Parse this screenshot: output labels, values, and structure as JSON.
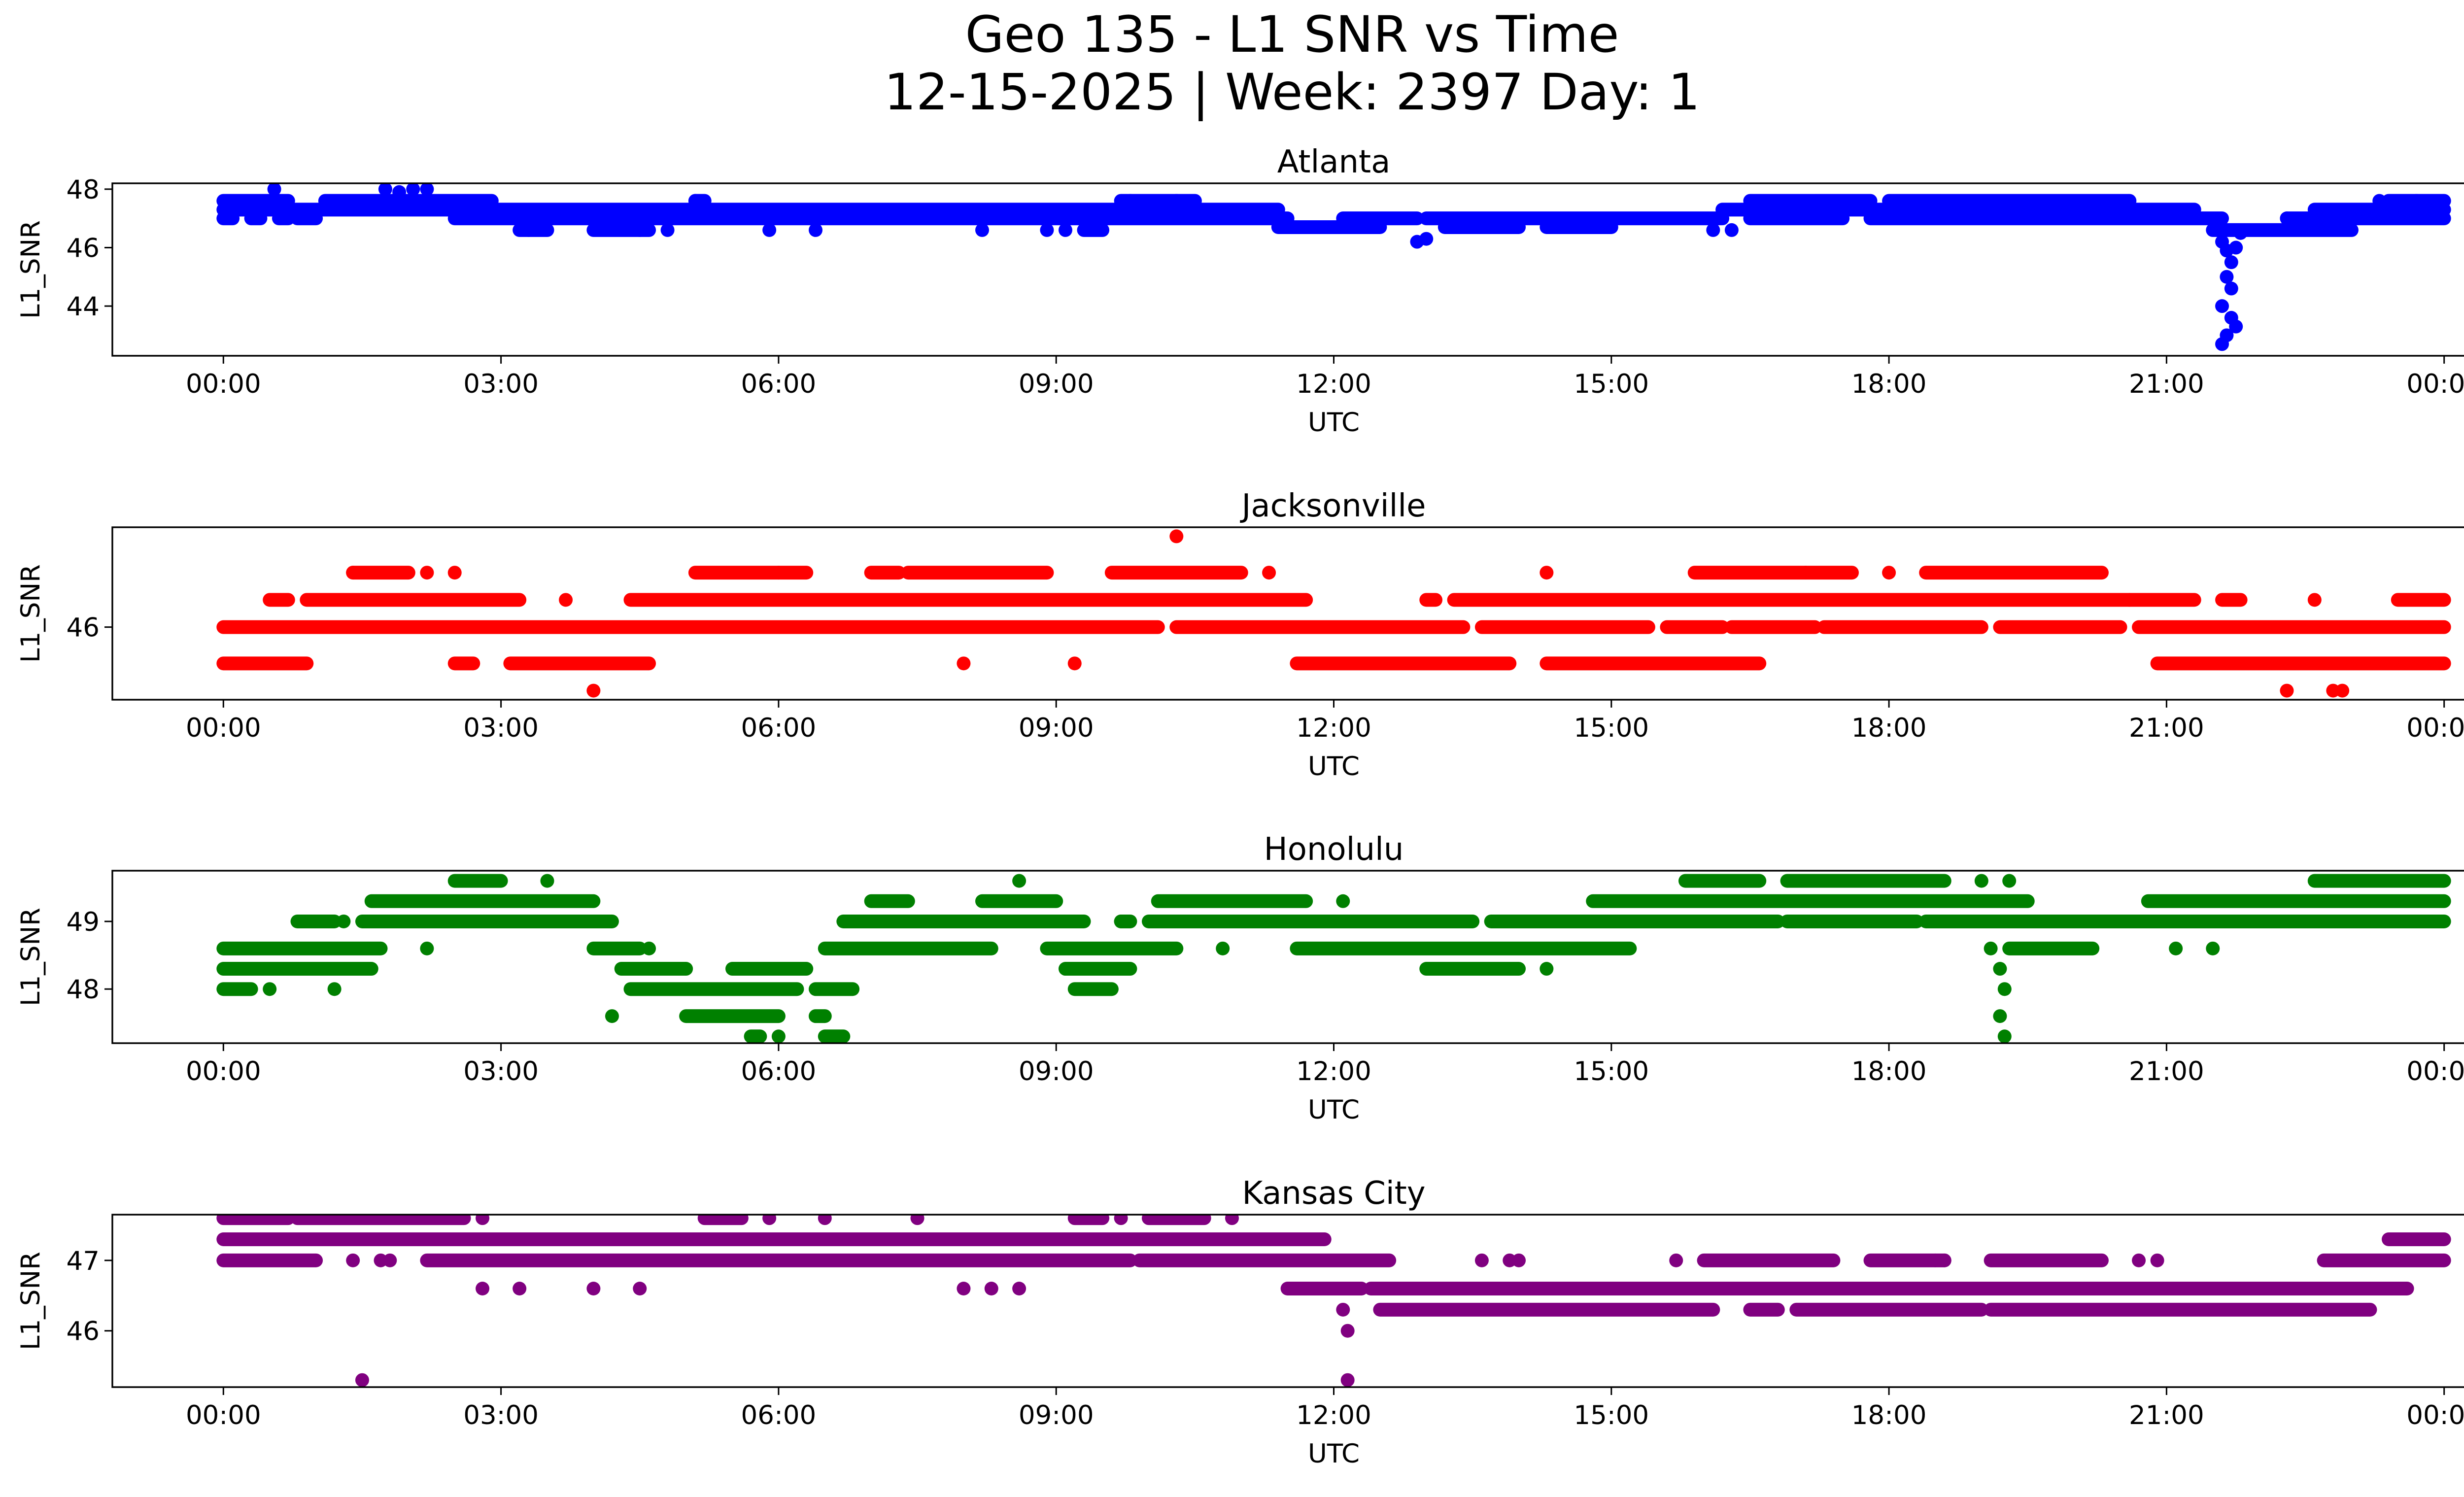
{
  "figure": {
    "title_line1": "Geo 135 - L1 SNR vs Time",
    "title_line2": "12-15-2025 | Week: 2397 Day: 1"
  },
  "chart_data": [
    {
      "type": "scatter",
      "title": "Atlanta",
      "color": "#0000ff",
      "xlabel": "UTC",
      "ylabel": "L1_SNR",
      "x_unit": "hours UTC",
      "xlim": [
        -1.2,
        25.2
      ],
      "ylim": [
        42.3,
        48.2
      ],
      "xticks": [
        0,
        3,
        6,
        9,
        12,
        15,
        18,
        21,
        24
      ],
      "xtick_labels": [
        "00:00",
        "03:00",
        "06:00",
        "09:00",
        "12:00",
        "15:00",
        "18:00",
        "21:00",
        "00:00"
      ],
      "yticks": [
        44,
        46,
        48
      ],
      "ytick_labels": [
        "44",
        "46",
        "48"
      ],
      "bands": [
        {
          "y": 47.6,
          "segments": [
            [
              0,
              0.7
            ],
            [
              1.1,
              2.9
            ],
            [
              5.1,
              5.2
            ],
            [
              9.7,
              10.5
            ],
            [
              16.5,
              17.8
            ],
            [
              18.0,
              20.6
            ],
            [
              23.4,
              24.0
            ]
          ]
        },
        {
          "y": 47.3,
          "segments": [
            [
              0,
              11.4
            ],
            [
              16.2,
              21.3
            ],
            [
              22.6,
              24.0
            ]
          ]
        },
        {
          "y": 47.0,
          "segments": [
            [
              0,
              0.1
            ],
            [
              0.3,
              0.4
            ],
            [
              0.6,
              0.7
            ],
            [
              0.8,
              1.0
            ],
            [
              2.5,
              11.5
            ],
            [
              12.1,
              12.9
            ],
            [
              13.0,
              16.2
            ],
            [
              16.5,
              17.5
            ],
            [
              17.8,
              21.6
            ],
            [
              22.3,
              24.0
            ]
          ]
        },
        {
          "y": 46.7,
          "segments": [
            [
              11.4,
              12.5
            ],
            [
              13.2,
              14.0
            ],
            [
              14.3,
              15.0
            ]
          ]
        },
        {
          "y": 46.6,
          "segments": [
            [
              3.2,
              3.5
            ],
            [
              4.0,
              4.6
            ],
            [
              9.3,
              9.5
            ],
            [
              21.5,
              23.0
            ]
          ]
        }
      ],
      "points": [
        {
          "x": 0.55,
          "y": 48.0
        },
        {
          "x": 1.75,
          "y": 48.0
        },
        {
          "x": 2.05,
          "y": 48.0
        },
        {
          "x": 2.2,
          "y": 48.0
        },
        {
          "x": 1.9,
          "y": 47.9
        },
        {
          "x": 3.3,
          "y": 46.6
        },
        {
          "x": 4.5,
          "y": 46.6
        },
        {
          "x": 4.8,
          "y": 46.6
        },
        {
          "x": 5.1,
          "y": 47.6
        },
        {
          "x": 5.9,
          "y": 46.6
        },
        {
          "x": 6.4,
          "y": 46.6
        },
        {
          "x": 8.2,
          "y": 46.6
        },
        {
          "x": 8.9,
          "y": 46.6
        },
        {
          "x": 9.1,
          "y": 46.6
        },
        {
          "x": 9.8,
          "y": 47.6
        },
        {
          "x": 10.3,
          "y": 47.6
        },
        {
          "x": 12.9,
          "y": 46.2
        },
        {
          "x": 13.0,
          "y": 46.3
        },
        {
          "x": 16.1,
          "y": 46.6
        },
        {
          "x": 16.3,
          "y": 46.6
        },
        {
          "x": 21.6,
          "y": 46.2
        },
        {
          "x": 21.65,
          "y": 45.9
        },
        {
          "x": 21.7,
          "y": 45.5
        },
        {
          "x": 21.65,
          "y": 45.0
        },
        {
          "x": 21.7,
          "y": 44.6
        },
        {
          "x": 21.6,
          "y": 44.0
        },
        {
          "x": 21.7,
          "y": 43.6
        },
        {
          "x": 21.75,
          "y": 43.3
        },
        {
          "x": 21.65,
          "y": 43.0
        },
        {
          "x": 21.6,
          "y": 42.7
        },
        {
          "x": 21.75,
          "y": 46.0
        },
        {
          "x": 21.8,
          "y": 46.5
        },
        {
          "x": 22.3,
          "y": 47.0
        },
        {
          "x": 23.3,
          "y": 47.6
        },
        {
          "x": 23.7,
          "y": 47.6
        }
      ]
    },
    {
      "type": "scatter",
      "title": "Jacksonville",
      "color": "#ff0000",
      "xlabel": "UTC",
      "ylabel": "L1_SNR",
      "x_unit": "hours UTC",
      "xlim": [
        -1.2,
        25.2
      ],
      "ylim": [
        45.2,
        47.1
      ],
      "xticks": [
        0,
        3,
        6,
        9,
        12,
        15,
        18,
        21,
        24
      ],
      "xtick_labels": [
        "00:00",
        "03:00",
        "06:00",
        "09:00",
        "12:00",
        "15:00",
        "18:00",
        "21:00",
        "00:00"
      ],
      "yticks": [
        46
      ],
      "ytick_labels": [
        "46"
      ],
      "bands": [
        {
          "y": 46.6,
          "segments": [
            [
              1.4,
              2.0
            ],
            [
              5.1,
              6.0
            ],
            [
              6.0,
              6.3
            ],
            [
              7.0,
              7.3
            ],
            [
              7.4,
              8.9
            ],
            [
              9.6,
              11.0
            ],
            [
              15.9,
              17.6
            ],
            [
              18.4,
              20.3
            ]
          ]
        },
        {
          "y": 46.3,
          "segments": [
            [
              0.5,
              0.7
            ],
            [
              0.9,
              3.2
            ],
            [
              4.4,
              11.7
            ],
            [
              13.0,
              13.1
            ],
            [
              13.3,
              20.6
            ],
            [
              20.6,
              21.3
            ],
            [
              21.6,
              21.8
            ],
            [
              23.5,
              24.0
            ]
          ]
        },
        {
          "y": 46.0,
          "segments": [
            [
              0,
              10.1
            ],
            [
              10.3,
              13.4
            ],
            [
              13.6,
              15.4
            ],
            [
              15.6,
              16.2
            ],
            [
              16.3,
              17.2
            ],
            [
              17.3,
              19.0
            ],
            [
              19.2,
              20.5
            ],
            [
              20.7,
              24.0
            ]
          ]
        },
        {
          "y": 45.6,
          "segments": [
            [
              0,
              0.9
            ],
            [
              2.5,
              2.7
            ],
            [
              3.1,
              4.6
            ],
            [
              11.6,
              13.9
            ],
            [
              14.3,
              16.6
            ],
            [
              20.9,
              24.0
            ]
          ]
        }
      ],
      "points": [
        {
          "x": 1.4,
          "y": 46.6
        },
        {
          "x": 2.2,
          "y": 46.6
        },
        {
          "x": 2.5,
          "y": 46.6
        },
        {
          "x": 3.7,
          "y": 46.3
        },
        {
          "x": 4.0,
          "y": 45.3
        },
        {
          "x": 8.0,
          "y": 45.6
        },
        {
          "x": 9.2,
          "y": 45.6
        },
        {
          "x": 10.3,
          "y": 47.0
        },
        {
          "x": 11.3,
          "y": 46.6
        },
        {
          "x": 14.3,
          "y": 46.6
        },
        {
          "x": 17.1,
          "y": 46.6
        },
        {
          "x": 18.0,
          "y": 46.6
        },
        {
          "x": 22.3,
          "y": 45.3
        },
        {
          "x": 22.8,
          "y": 45.3
        },
        {
          "x": 22.9,
          "y": 45.3
        },
        {
          "x": 22.6,
          "y": 46.3
        }
      ]
    },
    {
      "type": "scatter",
      "title": "Honolulu",
      "color": "#008000",
      "xlabel": "UTC",
      "ylabel": "L1_SNR",
      "x_unit": "hours UTC",
      "xlim": [
        -1.2,
        25.2
      ],
      "ylim": [
        47.2,
        49.75
      ],
      "xticks": [
        0,
        3,
        6,
        9,
        12,
        15,
        18,
        21,
        24
      ],
      "xtick_labels": [
        "00:00",
        "03:00",
        "06:00",
        "09:00",
        "12:00",
        "15:00",
        "18:00",
        "21:00",
        "00:00"
      ],
      "yticks": [
        48,
        49
      ],
      "ytick_labels": [
        "48",
        "49"
      ],
      "bands": [
        {
          "y": 49.6,
          "segments": [
            [
              2.5,
              3.0
            ],
            [
              15.8,
              16.6
            ],
            [
              16.9,
              18.6
            ],
            [
              22.6,
              24.0
            ]
          ]
        },
        {
          "y": 49.3,
          "segments": [
            [
              1.6,
              4.0
            ],
            [
              7.0,
              7.4
            ],
            [
              8.2,
              9.0
            ],
            [
              10.1,
              11.7
            ],
            [
              14.8,
              19.5
            ],
            [
              20.8,
              24.0
            ]
          ]
        },
        {
          "y": 49.0,
          "segments": [
            [
              0.8,
              1.2
            ],
            [
              1.5,
              4.2
            ],
            [
              6.7,
              9.3
            ],
            [
              9.7,
              9.8
            ],
            [
              10.0,
              13.5
            ],
            [
              13.7,
              14.5
            ],
            [
              14.5,
              16.8
            ],
            [
              16.9,
              18.3
            ],
            [
              18.4,
              24.0
            ]
          ]
        },
        {
          "y": 48.6,
          "segments": [
            [
              0,
              1.7
            ],
            [
              4.0,
              4.5
            ],
            [
              6.5,
              8.3
            ],
            [
              8.9,
              10.3
            ],
            [
              11.6,
              15.2
            ],
            [
              19.3,
              20.2
            ]
          ]
        },
        {
          "y": 48.3,
          "segments": [
            [
              0,
              1.6
            ],
            [
              4.3,
              5.0
            ],
            [
              5.5,
              6.3
            ],
            [
              9.1,
              9.8
            ],
            [
              13.0,
              14.0
            ]
          ]
        },
        {
          "y": 48.0,
          "segments": [
            [
              0.0,
              0.3
            ],
            [
              4.4,
              6.2
            ],
            [
              6.4,
              6.8
            ],
            [
              9.2,
              9.6
            ]
          ]
        },
        {
          "y": 47.6,
          "segments": [
            [
              5.0,
              6.0
            ],
            [
              6.4,
              6.5
            ]
          ]
        },
        {
          "y": 47.3,
          "segments": [
            [
              5.7,
              5.8
            ],
            [
              6.5,
              6.7
            ]
          ]
        }
      ],
      "points": [
        {
          "x": 0.5,
          "y": 48.0
        },
        {
          "x": 1.2,
          "y": 48.0
        },
        {
          "x": 1.3,
          "y": 49.0
        },
        {
          "x": 2.2,
          "y": 48.6
        },
        {
          "x": 3.5,
          "y": 49.6
        },
        {
          "x": 4.2,
          "y": 47.6
        },
        {
          "x": 4.6,
          "y": 48.6
        },
        {
          "x": 6.0,
          "y": 47.3
        },
        {
          "x": 8.6,
          "y": 49.6
        },
        {
          "x": 9.7,
          "y": 49.0
        },
        {
          "x": 10.8,
          "y": 48.6
        },
        {
          "x": 12.1,
          "y": 49.3
        },
        {
          "x": 14.3,
          "y": 48.3
        },
        {
          "x": 19.0,
          "y": 49.6
        },
        {
          "x": 19.3,
          "y": 49.6
        },
        {
          "x": 19.1,
          "y": 48.6
        },
        {
          "x": 19.2,
          "y": 48.3
        },
        {
          "x": 19.25,
          "y": 48.0
        },
        {
          "x": 19.2,
          "y": 47.6
        },
        {
          "x": 19.25,
          "y": 47.3
        },
        {
          "x": 21.1,
          "y": 48.6
        },
        {
          "x": 21.5,
          "y": 48.6
        },
        {
          "x": 17.8,
          "y": 49.0
        }
      ]
    },
    {
      "type": "scatter",
      "title": "Kansas City",
      "color": "#800080",
      "xlabel": "UTC",
      "ylabel": "L1_SNR",
      "x_unit": "hours UTC",
      "xlim": [
        -1.2,
        25.2
      ],
      "ylim": [
        45.2,
        47.65
      ],
      "xticks": [
        0,
        3,
        6,
        9,
        12,
        15,
        18,
        21,
        24
      ],
      "xtick_labels": [
        "00:00",
        "03:00",
        "06:00",
        "09:00",
        "12:00",
        "15:00",
        "18:00",
        "21:00",
        "00:00"
      ],
      "yticks": [
        46,
        47
      ],
      "ytick_labels": [
        "46",
        "47"
      ],
      "bands": [
        {
          "y": 47.6,
          "segments": [
            [
              0,
              0.7
            ],
            [
              0.8,
              2.6
            ],
            [
              5.2,
              5.6
            ],
            [
              9.2,
              9.5
            ],
            [
              10.0,
              10.6
            ]
          ]
        },
        {
          "y": 47.3,
          "segments": [
            [
              0,
              11.9
            ],
            [
              23.4,
              24.0
            ]
          ]
        },
        {
          "y": 47.0,
          "segments": [
            [
              0,
              1.0
            ],
            [
              2.2,
              9.8
            ],
            [
              9.9,
              12.6
            ],
            [
              16.0,
              17.4
            ],
            [
              17.8,
              18.6
            ],
            [
              19.1,
              20.3
            ],
            [
              22.7,
              24.0
            ]
          ]
        },
        {
          "y": 46.6,
          "segments": [
            [
              11.5,
              12.3
            ],
            [
              12.4,
              23.6
            ]
          ]
        },
        {
          "y": 46.3,
          "segments": [
            [
              12.5,
              16.1
            ],
            [
              16.5,
              16.8
            ],
            [
              17.0,
              19.0
            ],
            [
              19.1,
              23.2
            ]
          ]
        }
      ],
      "points": [
        {
          "x": 1.5,
          "y": 45.3
        },
        {
          "x": 1.4,
          "y": 47.0
        },
        {
          "x": 1.7,
          "y": 47.0
        },
        {
          "x": 1.8,
          "y": 47.0
        },
        {
          "x": 2.8,
          "y": 47.6
        },
        {
          "x": 2.8,
          "y": 46.6
        },
        {
          "x": 3.2,
          "y": 46.6
        },
        {
          "x": 4.0,
          "y": 46.6
        },
        {
          "x": 4.5,
          "y": 46.6
        },
        {
          "x": 5.9,
          "y": 47.6
        },
        {
          "x": 6.5,
          "y": 47.6
        },
        {
          "x": 7.5,
          "y": 47.6
        },
        {
          "x": 8.0,
          "y": 46.6
        },
        {
          "x": 8.3,
          "y": 46.6
        },
        {
          "x": 8.6,
          "y": 46.6
        },
        {
          "x": 9.7,
          "y": 47.6
        },
        {
          "x": 10.9,
          "y": 47.6
        },
        {
          "x": 12.1,
          "y": 46.3
        },
        {
          "x": 12.15,
          "y": 46.0
        },
        {
          "x": 12.15,
          "y": 45.3
        },
        {
          "x": 13.6,
          "y": 47.0
        },
        {
          "x": 13.9,
          "y": 47.0
        },
        {
          "x": 14.0,
          "y": 47.0
        },
        {
          "x": 15.7,
          "y": 47.0
        },
        {
          "x": 18.5,
          "y": 47.0
        },
        {
          "x": 18.6,
          "y": 47.0
        },
        {
          "x": 20.7,
          "y": 47.0
        },
        {
          "x": 20.9,
          "y": 47.0
        }
      ]
    }
  ]
}
